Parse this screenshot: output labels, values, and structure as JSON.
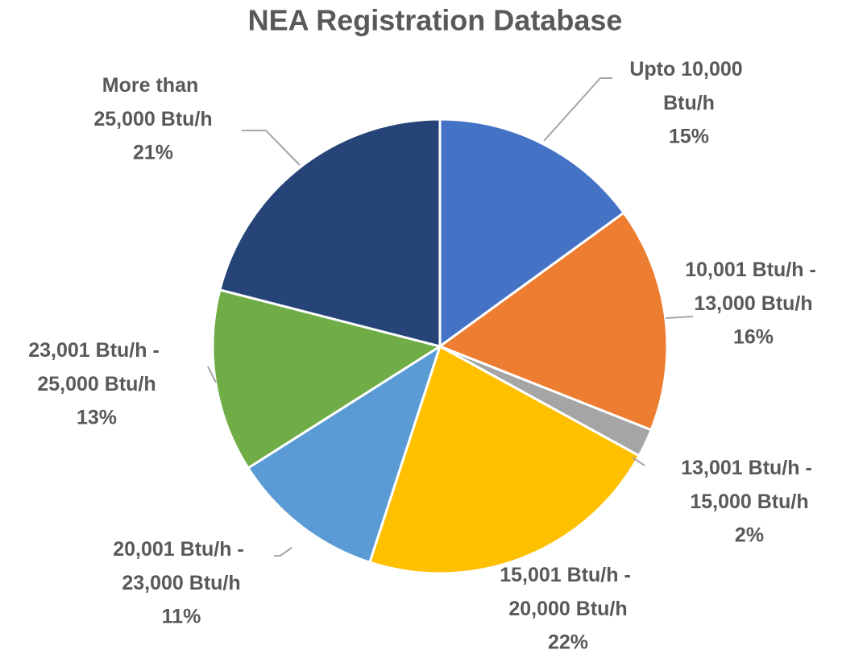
{
  "chart_data": {
    "type": "pie",
    "title": "NEA Registration Database",
    "categories": [
      "Upto 10,000 Btu/h",
      "10,001 Btu/h - 13,000 Btu/h",
      "13,001 Btu/h - 15,000 Btu/h",
      "15,001 Btu/h - 20,000 Btu/h",
      "20,001 Btu/h - 23,000 Btu/h",
      "23,001 Btu/h - 25,000 Btu/h",
      "More than 25,000 Btu/h"
    ],
    "values": [
      15,
      16,
      2,
      22,
      11,
      13,
      21
    ],
    "value_labels": [
      "15%",
      "16%",
      "2%",
      "22%",
      "11%",
      "13%",
      "21%"
    ],
    "colors": [
      "#4472c4",
      "#ed7d31",
      "#a5a5a5",
      "#ffc000",
      "#5b9bd5",
      "#70ad47",
      "#264478"
    ]
  }
}
